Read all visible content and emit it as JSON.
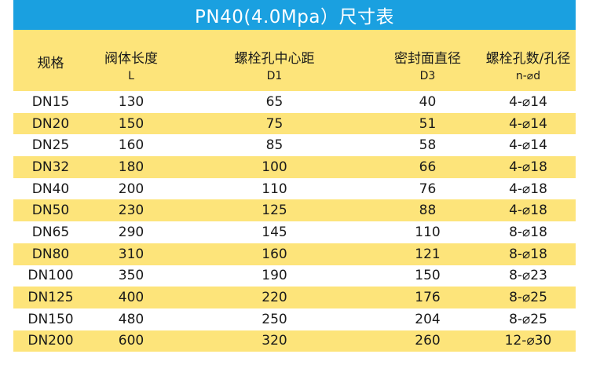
{
  "title": "PN40(4.0Mpa）尺寸表",
  "colors": {
    "title_bg": "#1aa0e0",
    "stripe": "#fde47a"
  },
  "headers": [
    {
      "name": "规格",
      "symbol": ""
    },
    {
      "name": "阀体长度",
      "symbol": "L"
    },
    {
      "name": "螺栓孔中心距",
      "symbol": "D1"
    },
    {
      "name": "密封面直径",
      "symbol": "D3"
    },
    {
      "name": "螺栓孔数/孔径",
      "symbol": "n-⌀d"
    }
  ],
  "rows": [
    [
      "DN15",
      "130",
      "65",
      "40",
      "4-⌀14"
    ],
    [
      "DN20",
      "150",
      "75",
      "51",
      "4-⌀14"
    ],
    [
      "DN25",
      "160",
      "85",
      "58",
      "4-⌀14"
    ],
    [
      "DN32",
      "180",
      "100",
      "66",
      "4-⌀18"
    ],
    [
      "DN40",
      "200",
      "110",
      "76",
      "4-⌀18"
    ],
    [
      "DN50",
      "230",
      "125",
      "88",
      "4-⌀18"
    ],
    [
      "DN65",
      "290",
      "145",
      "110",
      "8-⌀18"
    ],
    [
      "DN80",
      "310",
      "160",
      "121",
      "8-⌀18"
    ],
    [
      "DN100",
      "350",
      "190",
      "150",
      "8-⌀23"
    ],
    [
      "DN125",
      "400",
      "220",
      "176",
      "8-⌀25"
    ],
    [
      "DN150",
      "480",
      "250",
      "204",
      "8-⌀25"
    ],
    [
      "DN200",
      "600",
      "320",
      "260",
      "12-⌀30"
    ]
  ]
}
